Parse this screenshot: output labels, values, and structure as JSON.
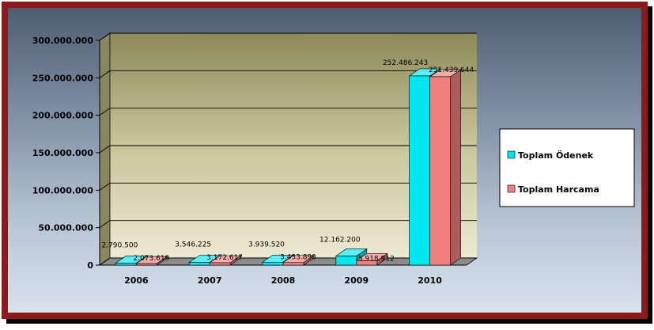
{
  "chart_data": {
    "type": "bar",
    "title": "",
    "xlabel": "",
    "ylabel": "",
    "categories": [
      "2006",
      "2007",
      "2008",
      "2009",
      "2010"
    ],
    "series": [
      {
        "name": "Toplam Ödenek",
        "color": "#00e6f0",
        "values": [
          2790500,
          3546225,
          3939520,
          12162200,
          252486243
        ],
        "labels": [
          "2.790.500",
          "3.546.225",
          "3.939.520",
          "12.162.200",
          "252.486.243"
        ]
      },
      {
        "name": "Toplam Harcama",
        "color": "#f08080",
        "values": [
          2073619,
          3172617,
          3433890,
          5918912,
          251439644
        ],
        "labels": [
          "2.073.619",
          "3.172.617",
          "3.433.890",
          "5.918.912",
          "251.439.644"
        ]
      }
    ],
    "yticks": [
      0,
      50000000,
      100000000,
      150000000,
      200000000,
      250000000,
      300000000
    ],
    "ytick_labels": [
      "0",
      "50.000.000",
      "100.000.000",
      "150.000.000",
      "200.000.000",
      "250.000.000",
      "300.000.000"
    ],
    "ylim": [
      0,
      300000000
    ],
    "grid": true,
    "legend_position": "right",
    "style": "3d-column"
  }
}
